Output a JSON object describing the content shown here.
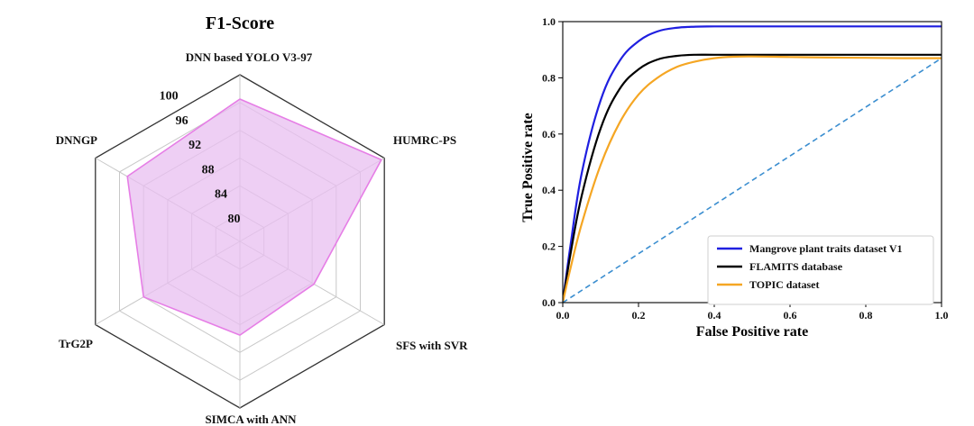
{
  "chart_data": [
    {
      "type": "radar",
      "title": "F1-Score",
      "axes": [
        "DNN based YOLO V3-97",
        "HUMRC-PS",
        "SFS with SVR",
        "SIMCA with ANN",
        "TrG2P",
        "DNNGP"
      ],
      "rings": [
        80,
        84,
        88,
        92,
        96,
        100
      ],
      "range": [
        76,
        100
      ],
      "values": [
        96.5,
        99.5,
        88.3,
        89.5,
        92.0,
        94.7
      ],
      "fill_color": "#e8bff0",
      "line_color": "#e67ee6"
    },
    {
      "type": "line",
      "xlabel": "False Positive rate",
      "ylabel": "True Positive rate",
      "xlim": [
        0.0,
        1.0
      ],
      "ylim": [
        0.0,
        1.0
      ],
      "xticks": [
        "0.0",
        "0.2",
        "0.4",
        "0.6",
        "0.8",
        "1.0"
      ],
      "yticks": [
        "0.0",
        "0.2",
        "0.4",
        "0.6",
        "0.8",
        "1.0"
      ],
      "legend_position": "bottom-right",
      "series": [
        {
          "name": "Mangrove plant traits dataset V1",
          "color": "#1f1fe0",
          "x": [
            0.0,
            0.02,
            0.05,
            0.1,
            0.15,
            0.2,
            0.25,
            0.3,
            0.35,
            0.4,
            0.5,
            0.6,
            0.7,
            0.8,
            0.9,
            1.0
          ],
          "y": [
            0.0,
            0.2,
            0.46,
            0.72,
            0.86,
            0.93,
            0.965,
            0.978,
            0.982,
            0.983,
            0.983,
            0.983,
            0.983,
            0.983,
            0.983,
            0.983
          ]
        },
        {
          "name": "FLAMITS database",
          "color": "#000000",
          "x": [
            0.0,
            0.02,
            0.05,
            0.1,
            0.15,
            0.2,
            0.25,
            0.3,
            0.35,
            0.4,
            0.5,
            0.6,
            0.7,
            0.8,
            0.9,
            1.0
          ],
          "y": [
            0.0,
            0.17,
            0.38,
            0.62,
            0.76,
            0.83,
            0.865,
            0.878,
            0.882,
            0.882,
            0.882,
            0.882,
            0.882,
            0.882,
            0.882,
            0.882
          ]
        },
        {
          "name": "TOPIC dataset",
          "color": "#f5a623",
          "x": [
            0.0,
            0.02,
            0.05,
            0.1,
            0.15,
            0.2,
            0.25,
            0.3,
            0.35,
            0.4,
            0.45,
            0.5,
            0.6,
            0.7,
            0.8,
            0.9,
            1.0
          ],
          "y": [
            0.0,
            0.12,
            0.28,
            0.49,
            0.64,
            0.74,
            0.8,
            0.838,
            0.858,
            0.87,
            0.875,
            0.876,
            0.874,
            0.872,
            0.871,
            0.87,
            0.87
          ]
        },
        {
          "name": "",
          "color": "#3b8ed0",
          "dashed": true,
          "x": [
            0.0,
            1.0
          ],
          "y": [
            0.0,
            0.87
          ]
        }
      ]
    }
  ]
}
